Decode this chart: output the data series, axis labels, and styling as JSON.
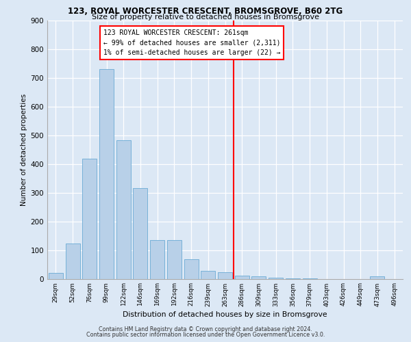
{
  "title1": "123, ROYAL WORCESTER CRESCENT, BROMSGROVE, B60 2TG",
  "title2": "Size of property relative to detached houses in Bromsgrove",
  "xlabel": "Distribution of detached houses by size in Bromsgrove",
  "ylabel": "Number of detached properties",
  "bar_labels": [
    "29sqm",
    "52sqm",
    "76sqm",
    "99sqm",
    "122sqm",
    "146sqm",
    "169sqm",
    "192sqm",
    "216sqm",
    "239sqm",
    "263sqm",
    "286sqm",
    "309sqm",
    "333sqm",
    "356sqm",
    "379sqm",
    "403sqm",
    "426sqm",
    "449sqm",
    "473sqm",
    "496sqm"
  ],
  "bar_values": [
    20,
    122,
    418,
    730,
    482,
    315,
    135,
    134,
    68,
    27,
    22,
    11,
    8,
    4,
    2,
    1,
    0,
    0,
    0,
    8,
    0
  ],
  "bar_color": "#b8d0e8",
  "bar_edgecolor": "#6aaad4",
  "annotation_line1": "123 ROYAL WORCESTER CRESCENT: 261sqm",
  "annotation_line2": "← 99% of detached houses are smaller (2,311)",
  "annotation_line3": "1% of semi-detached houses are larger (22) →",
  "ylim": [
    0,
    900
  ],
  "yticks": [
    0,
    100,
    200,
    300,
    400,
    500,
    600,
    700,
    800,
    900
  ],
  "footer1": "Contains HM Land Registry data © Crown copyright and database right 2024.",
  "footer2": "Contains public sector information licensed under the Open Government Licence v3.0.",
  "bg_color": "#dce8f5",
  "plot_bg_color": "#dce8f5"
}
